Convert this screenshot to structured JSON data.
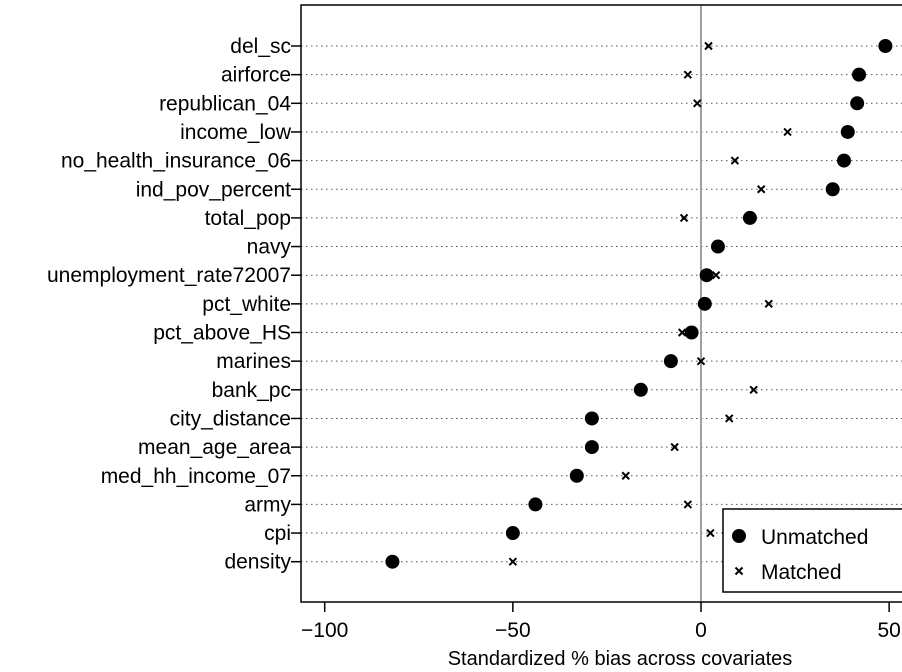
{
  "chart_data": {
    "type": "scatter",
    "xlabel": "Standardized % bias across covariates",
    "xlim": [
      -105,
      53
    ],
    "xticks": [
      -100,
      -50,
      0,
      50
    ],
    "reference_line_x": 0,
    "grid": "dotted horizontal lines at each covariate",
    "legend_position": "bottom-right",
    "categories": [
      "del_sc",
      "airforce",
      "republican_04",
      "income_low",
      "no_health_insurance_06",
      "ind_pov_percent",
      "total_pop",
      "navy",
      "unemployment_rate72007",
      "pct_white",
      "pct_above_HS",
      "marines",
      "bank_pc",
      "city_distance",
      "mean_age_area",
      "med_hh_income_07",
      "army",
      "cpi",
      "density"
    ],
    "series": [
      {
        "name": "Unmatched",
        "marker": "filled-circle",
        "values": [
          49,
          42,
          41.5,
          39,
          38,
          35,
          13,
          4.5,
          1.5,
          1,
          -2.5,
          -8,
          -16,
          -29,
          -29,
          -33,
          -44,
          -50,
          -82
        ]
      },
      {
        "name": "Matched",
        "marker": "x",
        "values": [
          2,
          -3.5,
          -1,
          23,
          9,
          16,
          -4.5,
          5,
          4,
          18,
          -5,
          0,
          14,
          7.5,
          -7,
          -20,
          -3.5,
          2.5,
          -50
        ]
      }
    ]
  }
}
